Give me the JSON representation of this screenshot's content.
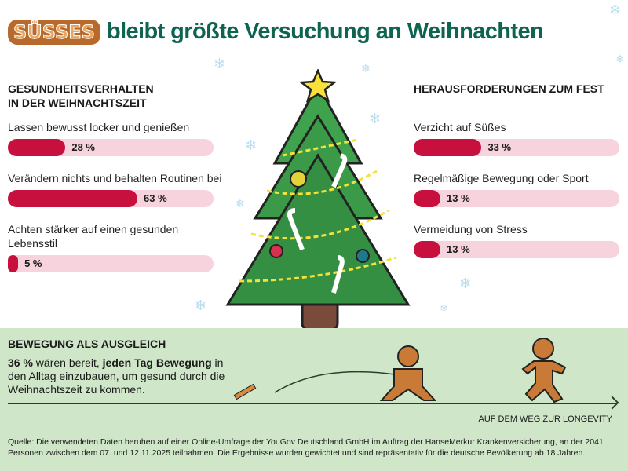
{
  "header": {
    "logo_text": "SÜSSES",
    "title": "bleibt größte Versuchung an Weihnachten"
  },
  "colors": {
    "title": "#0e6450",
    "bar_fill": "#c8103f",
    "bar_track": "#f7d3dd",
    "bottom_bg": "#cfe6c8"
  },
  "chart_data": [
    {
      "type": "bar",
      "title": "GESUNDHEITSVERHALTEN\nIN DER WEIHNACHTSZEIT",
      "title_lines": [
        "GESUNDHEITSVERHALTEN",
        "IN DER WEIHNACHTSZEIT"
      ],
      "categories": [
        "Lassen bewusst locker und genießen",
        "Verändern nichts und behalten Routinen bei",
        "Achten stärker auf einen gesunden Lebensstil"
      ],
      "values": [
        28,
        63,
        5
      ],
      "labels": [
        "28 %",
        "63 %",
        "5 %"
      ],
      "ylim": [
        0,
        100
      ],
      "orientation": "horizontal"
    },
    {
      "type": "bar",
      "title": "HERAUSFORDERUNGEN ZUM FEST",
      "title_lines": [
        "HERAUSFORDERUNGEN ZUM FEST"
      ],
      "categories": [
        "Verzicht auf Süßes",
        "Regelmäßige Bewegung oder Sport",
        "Vermeidung von Stress"
      ],
      "values": [
        33,
        13,
        13
      ],
      "labels": [
        "33 %",
        "13 %",
        "13 %"
      ],
      "ylim": [
        0,
        100
      ],
      "orientation": "horizontal"
    }
  ],
  "bottom": {
    "title": "BEWEGUNG ALS AUSGLEICH",
    "stat": "36 %",
    "text_1": " wären bereit, ",
    "highlight": "jeden Tag Bewegung",
    "text_2": " in den Alltag einzubauen, um gesund durch die Weihnachtszeit zu kommen.",
    "axis_label": "AUF DEM WEG ZUR LONGEVITY",
    "source": "Quelle: Die verwendeten Daten beruhen auf einer Online-Umfrage der YouGov Deutschland GmbH im Auftrag der HanseMerkur Krankenversicherung, an der 2041 Personen zwischen dem 07. und 12.11.2025 teilnahmen. Die Ergebnisse wurden gewichtet und sind repräsentativ für die deutsche Bevölkerung ab 18 Jahren."
  }
}
